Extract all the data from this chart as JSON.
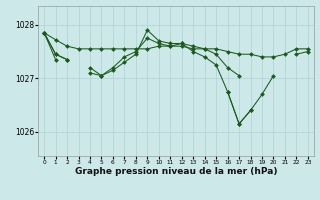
{
  "bg_color": "#cce8e8",
  "grid_color": "#b5d5d5",
  "line_color": "#1a5c1a",
  "marker_color": "#1a5c1a",
  "xlabel": "Graphe pression niveau de la mer (hPa)",
  "xlabel_fontsize": 6.5,
  "ylim": [
    1025.55,
    1028.35
  ],
  "xlim": [
    -0.5,
    23.5
  ],
  "yticks": [
    1026,
    1027,
    1028
  ],
  "xticks": [
    0,
    1,
    2,
    3,
    4,
    5,
    6,
    7,
    8,
    9,
    10,
    11,
    12,
    13,
    14,
    15,
    16,
    17,
    18,
    19,
    20,
    21,
    22,
    23
  ],
  "series": [
    [
      1027.85,
      1027.72,
      1027.6,
      1027.55,
      1027.55,
      1027.55,
      1027.55,
      1027.55,
      1027.55,
      1027.55,
      1027.6,
      1027.6,
      1027.6,
      1027.55,
      1027.55,
      1027.55,
      1027.5,
      1027.45,
      1027.45,
      1027.4,
      1027.4,
      1027.45,
      1027.55,
      1027.55
    ],
    [
      1027.85,
      1027.45,
      1027.35,
      null,
      1027.1,
      1027.05,
      1027.15,
      1027.3,
      1027.45,
      1027.9,
      1027.7,
      1027.65,
      1027.65,
      1027.6,
      1027.55,
      1027.45,
      1027.2,
      1027.05,
      null,
      null,
      null,
      null,
      null,
      null
    ],
    [
      1027.85,
      1027.45,
      1027.35,
      null,
      1027.2,
      1027.05,
      1027.2,
      1027.4,
      1027.5,
      1027.75,
      1027.65,
      1027.6,
      1027.65,
      1027.5,
      1027.4,
      1027.25,
      1026.75,
      1026.15,
      1026.4,
      1026.7,
      1027.05,
      null,
      1027.45,
      1027.5
    ],
    [
      1027.85,
      1027.35,
      null,
      null,
      null,
      null,
      null,
      null,
      null,
      null,
      null,
      null,
      null,
      null,
      null,
      null,
      1026.75,
      1026.15,
      1026.4,
      null,
      null,
      null,
      null,
      null
    ]
  ]
}
